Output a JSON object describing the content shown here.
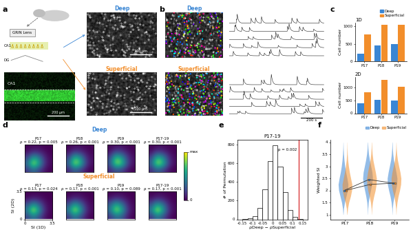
{
  "panel_labels": [
    "a",
    "b",
    "c",
    "d",
    "e",
    "f"
  ],
  "schematic": {
    "lens": "GRIN Lens",
    "regions": [
      "CA1",
      "DG"
    ],
    "histology_label": "CA1",
    "histology_scale": "200 µm",
    "image_titles": [
      "Deep",
      "Superficial"
    ],
    "title_colors": [
      "#3a86d4",
      "#f28e2b"
    ],
    "image_scale": "100 µm",
    "trace_scale": "200 s"
  },
  "chart_data": [
    {
      "type": "bar",
      "title": "1D",
      "categories": [
        "P17",
        "P18",
        "P19"
      ],
      "ylabel": "Cell number",
      "ylim": [
        0,
        1100
      ],
      "yticks": [
        0,
        500,
        1000
      ],
      "legend": "upper right",
      "series": [
        {
          "name": "Deep",
          "color": "#3a86d4",
          "values": [
            230,
            450,
            500
          ]
        },
        {
          "name": "Superficial",
          "color": "#f28e2b",
          "values": [
            780,
            1050,
            1050
          ]
        }
      ]
    },
    {
      "type": "bar",
      "title": "2D",
      "categories": [
        "P17",
        "P18",
        "P19"
      ],
      "ylabel": "Cell number",
      "ylim": [
        0,
        1400
      ],
      "yticks": [
        0,
        500,
        1000
      ],
      "series": [
        {
          "name": "Deep",
          "color": "#3a86d4",
          "values": [
            380,
            520,
            500
          ]
        },
        {
          "name": "Superficial",
          "color": "#f28e2b",
          "values": [
            820,
            1300,
            1020
          ]
        }
      ]
    },
    {
      "type": "heatmap",
      "xlabel": "SI (1D)",
      "ylabel": "SI (2D)",
      "xlim": [
        0,
        3.5
      ],
      "ylim": [
        0,
        3.5
      ],
      "xticks": [
        0,
        3.5
      ],
      "yticks": [
        0,
        3.5
      ],
      "colorbar": {
        "range": [
          0,
          1
        ],
        "ticks": [
          0,
          {
            "value": 1,
            "label": "max"
          }
        ]
      },
      "rows": [
        {
          "name": "Deep",
          "color": "#3a86d4",
          "panels": [
            {
              "title": "P17",
              "stat": "ρ = 0.22, p = 0.005",
              "cells": [
                [
                  0.15,
                  0.35,
                  0.2,
                  0.05,
                  0.0
                ],
                [
                  0.35,
                  0.95,
                  0.6,
                  0.15,
                  0.02
                ],
                [
                  0.2,
                  0.6,
                  0.45,
                  0.12,
                  0.02
                ],
                [
                  0.05,
                  0.15,
                  0.12,
                  0.05,
                  0.0
                ],
                [
                  0.0,
                  0.02,
                  0.02,
                  0.0,
                  0.0
                ]
              ]
            },
            {
              "title": "P18",
              "stat": "ρ = 0.26, p < 0.001",
              "cells": [
                [
                  0.1,
                  0.3,
                  0.2,
                  0.05,
                  0.0
                ],
                [
                  0.3,
                  0.9,
                  0.7,
                  0.2,
                  0.03
                ],
                [
                  0.2,
                  0.7,
                  0.55,
                  0.15,
                  0.03
                ],
                [
                  0.05,
                  0.2,
                  0.15,
                  0.06,
                  0.01
                ],
                [
                  0.0,
                  0.03,
                  0.03,
                  0.01,
                  0.0
                ]
              ]
            },
            {
              "title": "P19",
              "stat": "ρ = 0.30, p < 0.001",
              "cells": [
                [
                  0.1,
                  0.25,
                  0.2,
                  0.06,
                  0.0
                ],
                [
                  0.25,
                  0.85,
                  0.75,
                  0.25,
                  0.04
                ],
                [
                  0.2,
                  0.75,
                  0.6,
                  0.2,
                  0.04
                ],
                [
                  0.06,
                  0.25,
                  0.2,
                  0.08,
                  0.01
                ],
                [
                  0.0,
                  0.04,
                  0.04,
                  0.01,
                  0.0
                ]
              ]
            },
            {
              "title": "P17-19",
              "stat": "ρ = 0.30, p < 0.001",
              "cells": [
                [
                  0.12,
                  0.3,
                  0.2,
                  0.05,
                  0.0
                ],
                [
                  0.3,
                  0.9,
                  0.7,
                  0.2,
                  0.03
                ],
                [
                  0.2,
                  0.7,
                  0.55,
                  0.15,
                  0.03
                ],
                [
                  0.05,
                  0.2,
                  0.15,
                  0.06,
                  0.01
                ],
                [
                  0.0,
                  0.03,
                  0.03,
                  0.01,
                  0.0
                ]
              ]
            }
          ]
        },
        {
          "name": "Superficial",
          "color": "#f28e2b",
          "panels": [
            {
              "title": "P17",
              "stat": "ρ = 0.13, p = 0.024",
              "cells": [
                [
                  0.2,
                  0.4,
                  0.25,
                  0.05,
                  0.0
                ],
                [
                  0.4,
                  1.0,
                  0.55,
                  0.12,
                  0.01
                ],
                [
                  0.25,
                  0.55,
                  0.35,
                  0.08,
                  0.01
                ],
                [
                  0.05,
                  0.12,
                  0.08,
                  0.03,
                  0.0
                ],
                [
                  0.0,
                  0.01,
                  0.01,
                  0.0,
                  0.0
                ]
              ]
            },
            {
              "title": "P18",
              "stat": "ρ = 0.17, p < 0.001",
              "cells": [
                [
                  0.15,
                  0.4,
                  0.25,
                  0.06,
                  0.0
                ],
                [
                  0.4,
                  0.95,
                  0.6,
                  0.15,
                  0.02
                ],
                [
                  0.25,
                  0.6,
                  0.4,
                  0.1,
                  0.02
                ],
                [
                  0.06,
                  0.15,
                  0.1,
                  0.04,
                  0.0
                ],
                [
                  0.0,
                  0.02,
                  0.02,
                  0.0,
                  0.0
                ]
              ]
            },
            {
              "title": "P19",
              "stat": "ρ = 0.10, p = 0.089",
              "cells": [
                [
                  0.15,
                  0.35,
                  0.3,
                  0.08,
                  0.0
                ],
                [
                  0.35,
                  0.9,
                  0.65,
                  0.18,
                  0.02
                ],
                [
                  0.3,
                  0.65,
                  0.45,
                  0.12,
                  0.02
                ],
                [
                  0.08,
                  0.18,
                  0.12,
                  0.05,
                  0.0
                ],
                [
                  0.0,
                  0.02,
                  0.02,
                  0.0,
                  0.0
                ]
              ]
            },
            {
              "title": "P17-19",
              "stat": "ρ = 0.17, p < 0.001",
              "cells": [
                [
                  0.15,
                  0.4,
                  0.25,
                  0.06,
                  0.0
                ],
                [
                  0.4,
                  0.97,
                  0.6,
                  0.15,
                  0.02
                ],
                [
                  0.25,
                  0.6,
                  0.42,
                  0.1,
                  0.02
                ],
                [
                  0.06,
                  0.15,
                  0.1,
                  0.04,
                  0.0
                ],
                [
                  0.0,
                  0.02,
                  0.02,
                  0.0,
                  0.0
                ]
              ]
            }
          ]
        }
      ]
    },
    {
      "type": "histogram",
      "title": "P17-19",
      "xlabel": "ρDeep − ρSuperficial",
      "ylabel": "# of Permutation",
      "bins": [
        -0.15,
        -0.125,
        -0.1,
        -0.075,
        -0.05,
        -0.025,
        0,
        0.025,
        0.05,
        0.075,
        0.1,
        0.125,
        0.15
      ],
      "counts": [
        2,
        8,
        35,
        120,
        320,
        620,
        790,
        560,
        290,
        100,
        25,
        4
      ],
      "xlim": [
        -0.175,
        0.175
      ],
      "xticks": [
        -0.15,
        -0.1,
        -0.05,
        0,
        0.05,
        0.1,
        0.15
      ],
      "ylim": [
        0,
        850
      ],
      "yticks": [
        0,
        200,
        400,
        600,
        800
      ],
      "observed": {
        "value": 0.13,
        "label": "p = 0.002",
        "color": "#d62728"
      }
    },
    {
      "type": "violin",
      "categories": [
        "P17",
        "P18",
        "P19"
      ],
      "ylabel": "Weighted SI",
      "ylim": [
        0.8,
        4.1
      ],
      "yticks": [
        1,
        1.5,
        2,
        2.5,
        3,
        3.5,
        4
      ],
      "legend": "upper right",
      "density_levels": [
        1,
        1.25,
        1.5,
        1.75,
        2,
        2.25,
        2.5,
        2.75,
        3,
        3.25,
        3.5,
        3.75,
        4
      ],
      "series": [
        {
          "name": "Deep",
          "color": "#3a86d4",
          "marker": "o",
          "values": [
            2.0,
            2.45,
            2.3
          ],
          "density": [
            [
              0.02,
              0.1,
              0.3,
              0.6,
              0.9,
              1.0,
              0.8,
              0.55,
              0.35,
              0.2,
              0.1,
              0.04,
              0.01
            ],
            [
              0.01,
              0.05,
              0.15,
              0.35,
              0.6,
              0.85,
              1.0,
              0.9,
              0.65,
              0.4,
              0.2,
              0.08,
              0.02
            ],
            [
              0.01,
              0.05,
              0.18,
              0.4,
              0.7,
              0.95,
              1.0,
              0.8,
              0.55,
              0.3,
              0.15,
              0.06,
              0.02
            ]
          ]
        },
        {
          "name": "Superficial",
          "color": "#f28e2b",
          "marker": "o",
          "values": [
            2.0,
            2.25,
            2.3
          ],
          "density": [
            [
              0.02,
              0.12,
              0.35,
              0.7,
              0.95,
              1.0,
              0.75,
              0.5,
              0.3,
              0.15,
              0.07,
              0.03,
              0.01
            ],
            [
              0.01,
              0.06,
              0.2,
              0.45,
              0.75,
              0.95,
              1.0,
              0.8,
              0.55,
              0.3,
              0.15,
              0.06,
              0.02
            ],
            [
              0.01,
              0.06,
              0.2,
              0.42,
              0.72,
              0.95,
              1.0,
              0.82,
              0.55,
              0.3,
              0.14,
              0.05,
              0.01
            ]
          ]
        }
      ]
    }
  ]
}
